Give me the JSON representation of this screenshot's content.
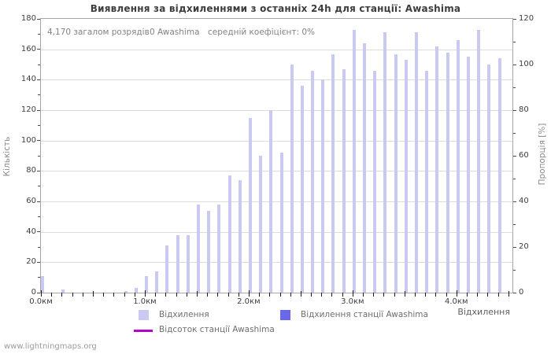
{
  "title": "Виявлення за відхиленнями з останніх 24h для станції: Awashima",
  "annotation": {
    "total_discharges": "4,170 загалом розрядів",
    "station_count": "0 Awashima",
    "mean_coefficient": "середній коефіцієнт: 0%"
  },
  "axes": {
    "left_label": "Кількість",
    "right_label": "Пропорція [%]",
    "x_label": "Відхилення",
    "left_ticks": [
      0,
      20,
      40,
      60,
      80,
      100,
      120,
      140,
      160,
      180
    ],
    "right_ticks": [
      0,
      20,
      40,
      60,
      80,
      100,
      120
    ],
    "x_tick_labels": [
      "0.0км",
      "1.0км",
      "2.0км",
      "3.0км",
      "4.0км"
    ],
    "x_tick_positions_km": [
      0,
      1,
      2,
      3,
      4
    ]
  },
  "legend": {
    "items": [
      {
        "label": "Відхилення",
        "color": "#c9c9f1",
        "type": "box"
      },
      {
        "label": "Відхилення станції Awashima",
        "color": "#6868e8",
        "type": "box"
      },
      {
        "label": "Відсоток станції Awashima",
        "color": "#b400c8",
        "type": "line"
      }
    ]
  },
  "footer": "www.lightningmaps.org",
  "colors": {
    "bar": "#c9c9f1",
    "station_bar": "#6868e8",
    "percent_line": "#b400c8",
    "grid": "#dcdcdc",
    "frame": "#a6a6a6"
  },
  "chart_data": {
    "type": "bar",
    "title": "Виявлення за відхиленнями з останніх 24h для станції: Awashima",
    "xlabel": "Відхилення",
    "ylabel": "Кількість",
    "y2label": "Пропорція [%]",
    "ylim": [
      0,
      180
    ],
    "y2lim": [
      0,
      120
    ],
    "xlim_km": [
      0,
      4.54
    ],
    "bin_width_km": 0.1,
    "x_km": [
      0.0,
      0.1,
      0.2,
      0.3,
      0.4,
      0.5,
      0.6,
      0.7,
      0.8,
      0.9,
      1.0,
      1.1,
      1.2,
      1.3,
      1.4,
      1.5,
      1.6,
      1.7,
      1.8,
      1.9,
      2.0,
      2.1,
      2.2,
      2.3,
      2.4,
      2.5,
      2.6,
      2.7,
      2.8,
      2.9,
      3.0,
      3.1,
      3.2,
      3.3,
      3.4,
      3.5,
      3.6,
      3.7,
      3.8,
      3.9,
      4.0,
      4.1,
      4.2,
      4.3,
      4.4
    ],
    "series": [
      {
        "name": "Відхилення",
        "values": [
          11,
          0,
          2,
          0,
          0,
          0,
          0,
          0,
          1,
          3,
          11,
          14,
          31,
          38,
          38,
          58,
          54,
          58,
          77,
          74,
          115,
          90,
          120,
          92,
          150,
          136,
          146,
          140,
          157,
          147,
          173,
          164,
          146,
          171,
          157,
          153,
          171,
          146,
          162,
          158,
          166,
          155,
          173,
          150,
          154
        ]
      },
      {
        "name": "Відхилення станції Awashima",
        "constant_value": 0
      },
      {
        "name": "Відсоток станції Awashima",
        "constant_value": 0,
        "axis": "right"
      }
    ],
    "grid": "horizontal",
    "legend_position": "bottom-center"
  }
}
